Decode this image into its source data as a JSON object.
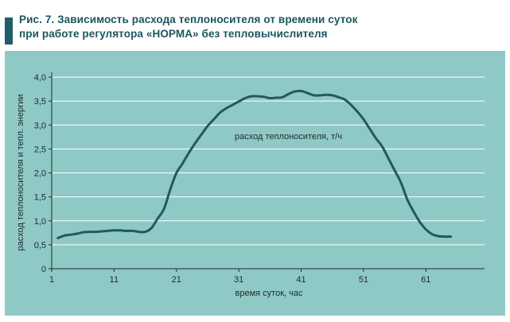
{
  "figure": {
    "title_line1": "Рис. 7. Зависимость расхода теплоносителя от времени суток",
    "title_line2": "при работе регулятора «НОРМА» без тепловычислителя"
  },
  "colors": {
    "accent": "#1f5f6a",
    "panel": "#8fc9c5",
    "grid": "#ffffff",
    "line": "#23585d",
    "text": "#1c2a2c"
  },
  "chart_data": {
    "type": "line",
    "title": "Рис. 7. Зависимость расхода теплоносителя от времени суток при работе регулятора «НОРМА» без тепловычислителя",
    "xlabel": "время суток, час",
    "ylabel": "расход теплоносителя и тепл. энергии",
    "xlim": [
      1,
      69
    ],
    "ylim": [
      0,
      4.0
    ],
    "x_ticks": [
      1,
      11,
      21,
      31,
      41,
      51,
      61
    ],
    "x_tick_labels": [
      "1",
      "11",
      "21",
      "31",
      "41",
      "51",
      "61"
    ],
    "y_ticks": [
      0,
      0.5,
      1.0,
      1.5,
      2.0,
      2.5,
      3.0,
      3.5,
      4.0
    ],
    "y_tick_labels": [
      "0",
      "0,5",
      "1,0",
      "1,5",
      "2,0",
      "2,5",
      "3,0",
      "3,5",
      "4,0"
    ],
    "grid": "horizontal",
    "series": [
      {
        "name": "расход теплоносителя, т/ч",
        "x": [
          2,
          3,
          4,
          5,
          6,
          7,
          8,
          9,
          10,
          11,
          12,
          13,
          14,
          15,
          16,
          17,
          18,
          19,
          20,
          21,
          22,
          23,
          24,
          25,
          26,
          27,
          28,
          29,
          30,
          31,
          32,
          33,
          34,
          35,
          36,
          37,
          38,
          39,
          40,
          41,
          42,
          43,
          44,
          45,
          46,
          47,
          48,
          49,
          50,
          51,
          52,
          53,
          54,
          55,
          56,
          57,
          58,
          59,
          60,
          61,
          62,
          63,
          64,
          65
        ],
        "y": [
          0.64,
          0.69,
          0.71,
          0.73,
          0.76,
          0.77,
          0.77,
          0.78,
          0.79,
          0.8,
          0.8,
          0.79,
          0.79,
          0.77,
          0.77,
          0.85,
          1.05,
          1.25,
          1.65,
          2.0,
          2.2,
          2.42,
          2.62,
          2.8,
          2.98,
          3.12,
          3.26,
          3.35,
          3.42,
          3.49,
          3.56,
          3.6,
          3.6,
          3.59,
          3.56,
          3.57,
          3.58,
          3.65,
          3.7,
          3.71,
          3.67,
          3.62,
          3.62,
          3.63,
          3.62,
          3.58,
          3.53,
          3.42,
          3.28,
          3.12,
          2.92,
          2.72,
          2.55,
          2.3,
          2.05,
          1.8,
          1.45,
          1.2,
          0.98,
          0.82,
          0.72,
          0.68,
          0.67,
          0.67
        ]
      }
    ]
  }
}
